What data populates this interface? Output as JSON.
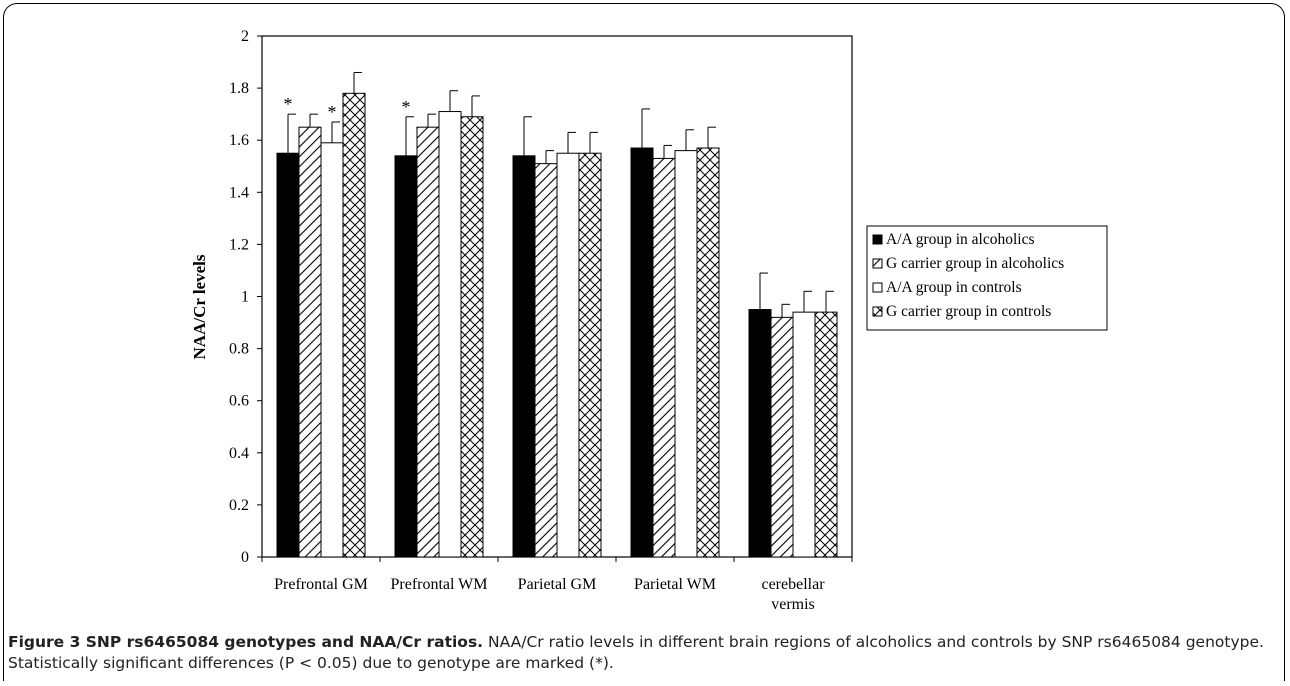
{
  "colors": {
    "axis": "#000000",
    "bar_black": "#000000",
    "bar_white": "#ffffff"
  },
  "chart_data": {
    "type": "bar",
    "title": "",
    "xlabel": "",
    "ylabel": "NAA/Cr levels",
    "ylim": [
      0,
      2
    ],
    "yticks": [
      "0",
      "0.2",
      "0.4",
      "0.6",
      "0.8",
      "1",
      "1.2",
      "1.4",
      "1.6",
      "1.8",
      "2"
    ],
    "categories": [
      "Prefrontal GM",
      "Prefrontal WM",
      "Parietal GM",
      "Parietal WM",
      "cerebellar vermis"
    ],
    "series": [
      {
        "name": "A/A group in alcoholics",
        "pattern": "solid-black",
        "values": [
          1.55,
          1.54,
          1.54,
          1.57,
          0.95
        ],
        "errors": [
          0.15,
          0.15,
          0.15,
          0.15,
          0.14
        ],
        "significant": [
          true,
          true,
          false,
          false,
          false
        ]
      },
      {
        "name": "G carrier  group in alcoholics",
        "pattern": "diagonal-hatch",
        "values": [
          1.65,
          1.65,
          1.51,
          1.53,
          0.92
        ],
        "errors": [
          0.05,
          0.05,
          0.05,
          0.05,
          0.05
        ],
        "significant": [
          false,
          false,
          false,
          false,
          false
        ]
      },
      {
        "name": "A/A group in controls",
        "pattern": "white",
        "values": [
          1.59,
          1.71,
          1.55,
          1.56,
          0.94
        ],
        "errors": [
          0.08,
          0.08,
          0.08,
          0.08,
          0.08
        ],
        "significant": [
          true,
          false,
          false,
          false,
          false
        ]
      },
      {
        "name": "G carrier  group in controls",
        "pattern": "crosshatch",
        "values": [
          1.78,
          1.69,
          1.55,
          1.57,
          0.94
        ],
        "errors": [
          0.08,
          0.08,
          0.08,
          0.08,
          0.08
        ],
        "significant": [
          false,
          false,
          false,
          false,
          false
        ]
      }
    ],
    "significance_marker": "*",
    "legend_position": "right"
  },
  "caption": {
    "label": "Figure 3 SNP rs6465084 genotypes and NAA/Cr ratios.",
    "text": " NAA/Cr ratio levels in different brain regions of alcoholics and controls by SNP rs6465084 genotype. Statistically significant differences (P < 0.05) due to genotype are marked (*)."
  }
}
